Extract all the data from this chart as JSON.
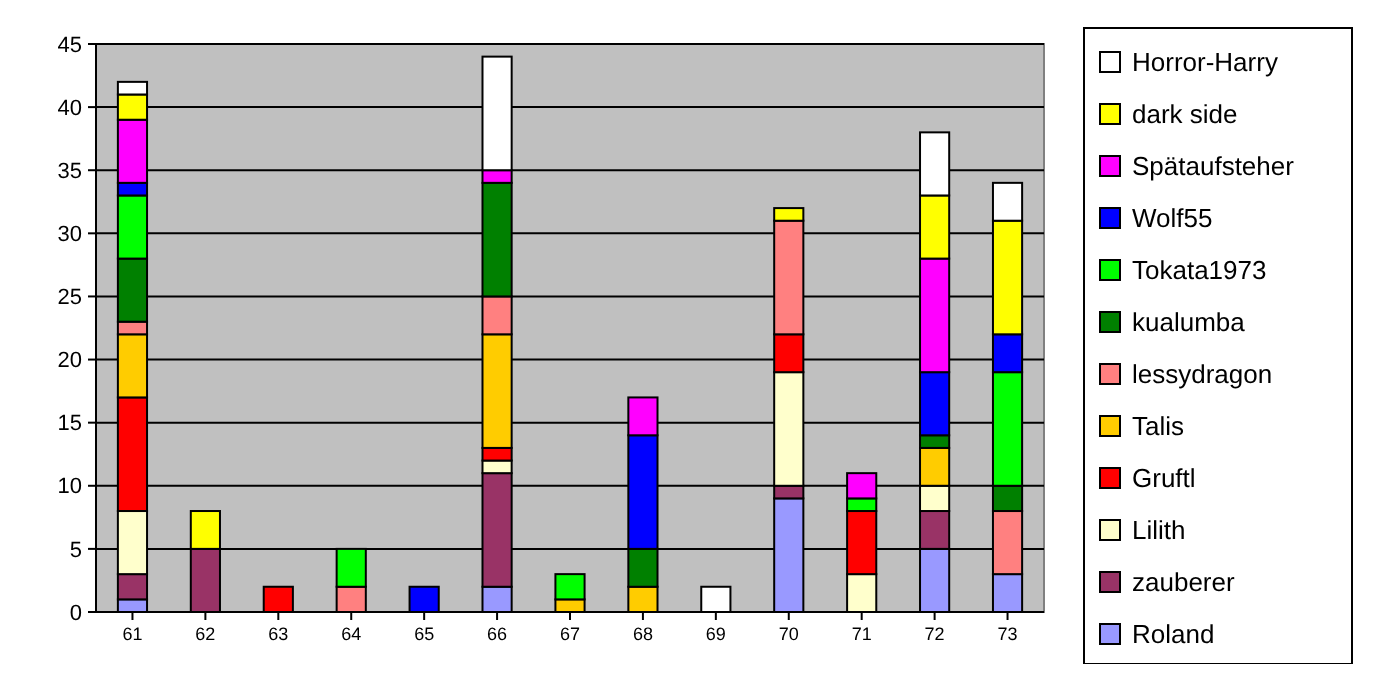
{
  "chart_data": {
    "type": "bar",
    "stacked": true,
    "categories": [
      "61",
      "62",
      "63",
      "64",
      "65",
      "66",
      "67",
      "68",
      "69",
      "70",
      "71",
      "72",
      "73"
    ],
    "ylim": [
      0,
      45
    ],
    "yticks": [
      0,
      5,
      10,
      15,
      20,
      25,
      30,
      35,
      40,
      45
    ],
    "grid": "y",
    "legend": "right",
    "series": [
      {
        "name": "Roland",
        "color": "#9999ff",
        "values": [
          1,
          0,
          0,
          0,
          0,
          2,
          0,
          0,
          0,
          9,
          0,
          5,
          3
        ]
      },
      {
        "name": "zauberer",
        "color": "#993366",
        "values": [
          2,
          5,
          0,
          0,
          0,
          9,
          0,
          0,
          0,
          1,
          0,
          3,
          0
        ]
      },
      {
        "name": "Lilith",
        "color": "#ffffcc",
        "values": [
          5,
          0,
          0,
          0,
          0,
          1,
          0,
          0,
          0,
          9,
          3,
          2,
          0
        ]
      },
      {
        "name": "Gruftl",
        "color": "#ff0000",
        "values": [
          9,
          0,
          2,
          0,
          0,
          1,
          0,
          0,
          0,
          3,
          5,
          0,
          0
        ]
      },
      {
        "name": "Talis",
        "color": "#ffcc00",
        "values": [
          5,
          0,
          0,
          0,
          0,
          9,
          1,
          2,
          0,
          0,
          0,
          3,
          0
        ]
      },
      {
        "name": "lessydragon",
        "color": "#ff8080",
        "values": [
          1,
          0,
          0,
          2,
          0,
          3,
          0,
          0,
          0,
          9,
          0,
          0,
          5
        ]
      },
      {
        "name": "kualumba",
        "color": "#008000",
        "values": [
          5,
          0,
          0,
          0,
          0,
          9,
          0,
          3,
          0,
          0,
          0,
          1,
          2
        ]
      },
      {
        "name": "Tokata1973",
        "color": "#00ff00",
        "values": [
          5,
          0,
          0,
          3,
          0,
          0,
          2,
          0,
          0,
          0,
          1,
          0,
          9
        ]
      },
      {
        "name": "Wolf55",
        "color": "#0000ff",
        "values": [
          1,
          0,
          0,
          0,
          2,
          0,
          0,
          9,
          0,
          0,
          0,
          5,
          3
        ]
      },
      {
        "name": "Spätaufsteher",
        "color": "#ff00ff",
        "values": [
          5,
          0,
          0,
          0,
          0,
          1,
          0,
          3,
          0,
          0,
          2,
          9,
          0
        ]
      },
      {
        "name": "dark side",
        "color": "#ffff00",
        "values": [
          2,
          3,
          0,
          0,
          0,
          0,
          0,
          0,
          0,
          1,
          0,
          5,
          9
        ]
      },
      {
        "name": "Horror-Harry",
        "color": "#ffffff",
        "values": [
          1,
          0,
          0,
          0,
          0,
          9,
          0,
          0,
          2,
          0,
          0,
          5,
          3
        ]
      }
    ]
  }
}
